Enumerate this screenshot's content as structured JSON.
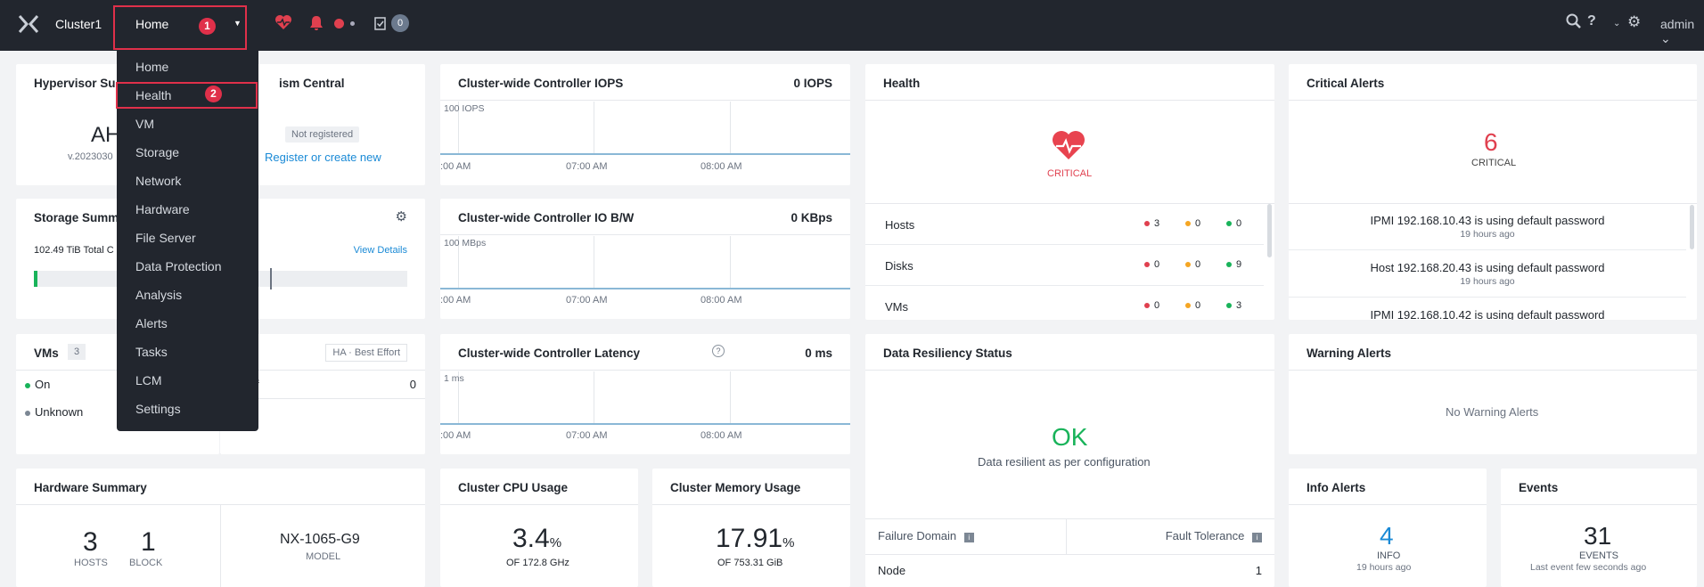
{
  "topbar": {
    "cluster_name": "Cluster1",
    "current_view": "Home",
    "task_count": "0",
    "user": "admin"
  },
  "annotations": {
    "step1": "1",
    "step2": "2"
  },
  "menu": {
    "items": [
      "Home",
      "Health",
      "VM",
      "Storage",
      "Network",
      "Hardware",
      "File Server",
      "Data Protection",
      "Analysis",
      "Alerts",
      "Tasks",
      "LCM",
      "Settings"
    ]
  },
  "hypervisor": {
    "title": "Hypervisor Su",
    "name": "AH",
    "version": "v.2023030"
  },
  "prism": {
    "title": "ism Central",
    "status": "Not registered",
    "link": "Register or create new"
  },
  "storage": {
    "title": "Storage Summ",
    "total": "102.49 TiB  Total C",
    "view_details": "View Details"
  },
  "vms": {
    "title": "VMs",
    "count": "3",
    "ha": "HA · Best Effort",
    "on": "On",
    "unknown": "Unknown",
    "off_partial": "f",
    "off_value": "0"
  },
  "iops": {
    "title": "Cluster-wide Controller IOPS",
    "value": "0 IOPS",
    "scale": "100 IOPS",
    "ticks": [
      ":00 AM",
      "07:00 AM",
      "08:00 AM"
    ]
  },
  "iobw": {
    "title": "Cluster-wide Controller IO B/W",
    "value": "0 KBps",
    "scale": "100 MBps",
    "ticks": [
      ":00 AM",
      "07:00 AM",
      "08:00 AM"
    ]
  },
  "latency": {
    "title": "Cluster-wide Controller Latency",
    "value": "0 ms",
    "scale": "1 ms",
    "ticks": [
      ":00 AM",
      "07:00 AM",
      "08:00 AM"
    ]
  },
  "health": {
    "title": "Health",
    "status": "CRITICAL",
    "rows": [
      {
        "label": "Hosts",
        "red": "3",
        "orange": "0",
        "green": "0"
      },
      {
        "label": "Disks",
        "red": "0",
        "orange": "0",
        "green": "9"
      },
      {
        "label": "VMs",
        "red": "0",
        "orange": "0",
        "green": "3"
      }
    ]
  },
  "critical_alerts": {
    "title": "Critical Alerts",
    "count": "6",
    "label": "CRITICAL",
    "items": [
      {
        "text": "IPMI 192.168.10.43 is using default password",
        "time": "19 hours ago"
      },
      {
        "text": "Host 192.168.20.43 is using default password",
        "time": "19 hours ago"
      },
      {
        "text": "IPMI 192.168.10.42 is using default password",
        "time": ""
      }
    ]
  },
  "resiliency": {
    "title": "Data Resiliency Status",
    "status": "OK",
    "desc": "Data resilient as per configuration",
    "col1": "Failure Domain",
    "col2": "Fault Tolerance",
    "row_label": "Node",
    "row_value": "1"
  },
  "warning_alerts": {
    "title": "Warning Alerts",
    "empty": "No Warning Alerts"
  },
  "hardware": {
    "title": "Hardware Summary",
    "hosts": "3",
    "hosts_label": "HOSTS",
    "blocks": "1",
    "blocks_label": "BLOCK",
    "model": "NX-1065-G9",
    "model_label": "MODEL"
  },
  "cpu": {
    "title": "Cluster CPU Usage",
    "value": "3.4",
    "unit": "%",
    "sub": "OF 172.8 GHz"
  },
  "memory": {
    "title": "Cluster Memory Usage",
    "value": "17.91",
    "unit": "%",
    "sub": "OF 753.31 GiB"
  },
  "info_alerts": {
    "title": "Info Alerts",
    "count": "4",
    "label": "INFO",
    "time": "19 hours ago"
  },
  "events": {
    "title": "Events",
    "count": "31",
    "label": "EVENTS",
    "time": "Last event few seconds ago"
  }
}
